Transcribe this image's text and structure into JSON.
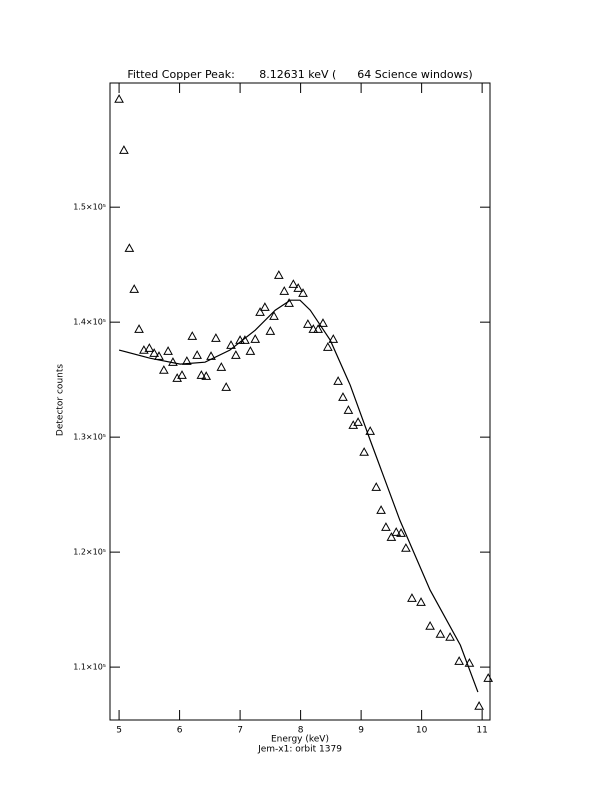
{
  "chart_data": {
    "type": "scatter",
    "title": "Fitted Copper Peak:       8.12631 keV (      64 Science windows)",
    "x_label": "Energy (keV)",
    "subtitle": "Jem-x1: orbit 1379",
    "y_label": "Detector counts",
    "xlim": [
      4.85,
      11.13
    ],
    "ylim": [
      105400,
      160800
    ],
    "xticks": [
      5,
      6,
      7,
      8,
      9,
      10,
      11
    ],
    "yticks": [
      {
        "value": 110000,
        "label": "1.1×10⁵"
      },
      {
        "value": 120000,
        "label": "1.2×10⁵"
      },
      {
        "value": 130000,
        "label": "1.3×10⁵"
      },
      {
        "value": 140000,
        "label": "1.4×10⁵"
      },
      {
        "value": 150000,
        "label": "1.5×10⁵"
      }
    ],
    "series": [
      {
        "type": "scatter",
        "marker": "triangle",
        "color": "#000000",
        "x": [
          5.0,
          5.08,
          5.17,
          5.25,
          5.33,
          5.41,
          5.5,
          5.58,
          5.66,
          5.74,
          5.81,
          5.89,
          5.96,
          6.04,
          6.12,
          6.21,
          6.29,
          6.36,
          6.44,
          6.52,
          6.6,
          6.69,
          6.77,
          6.85,
          6.93,
          7.0,
          7.08,
          7.17,
          7.25,
          7.33,
          7.41,
          7.5,
          7.56,
          7.64,
          7.73,
          7.81,
          7.88,
          7.96,
          8.04,
          8.12,
          8.21,
          8.29,
          8.37,
          8.45,
          8.54,
          8.62,
          8.7,
          8.79,
          8.87,
          8.95,
          9.05,
          9.15,
          9.25,
          9.33,
          9.41,
          9.5,
          9.58,
          9.66,
          9.74,
          9.84,
          9.99,
          10.14,
          10.31,
          10.47,
          10.62,
          10.79,
          10.95,
          11.1
        ],
        "values": [
          159400,
          154960,
          146430,
          142870,
          139390,
          137570,
          137740,
          137300,
          137040,
          135830,
          137480,
          136520,
          135130,
          135390,
          136610,
          138780,
          137130,
          135390,
          135300,
          137040,
          138610,
          136090,
          134350,
          138000,
          137130,
          138430,
          138430,
          137480,
          138520,
          140870,
          141300,
          139220,
          140520,
          144090,
          142700,
          141650,
          143300,
          142960,
          142520,
          139830,
          139390,
          139390,
          139910,
          137830,
          138520,
          134870,
          133480,
          132350,
          131040,
          131300,
          128700,
          130520,
          125650,
          123650,
          122170,
          121300,
          121740,
          121650,
          120350,
          116000,
          115650,
          113570,
          112870,
          112610,
          110520,
          110350,
          106610,
          109040
        ]
      },
      {
        "type": "line",
        "color": "#000000",
        "x": [
          5.0,
          5.51,
          6.01,
          6.42,
          6.83,
          7.25,
          7.58,
          7.83,
          7.99,
          8.16,
          8.49,
          8.82,
          9.15,
          9.64,
          10.14,
          10.64,
          10.93
        ],
        "values": [
          137570,
          136870,
          136350,
          136520,
          137570,
          139300,
          141040,
          141910,
          141910,
          141040,
          138430,
          134520,
          129740,
          122780,
          116700,
          111910,
          107830
        ]
      }
    ]
  }
}
